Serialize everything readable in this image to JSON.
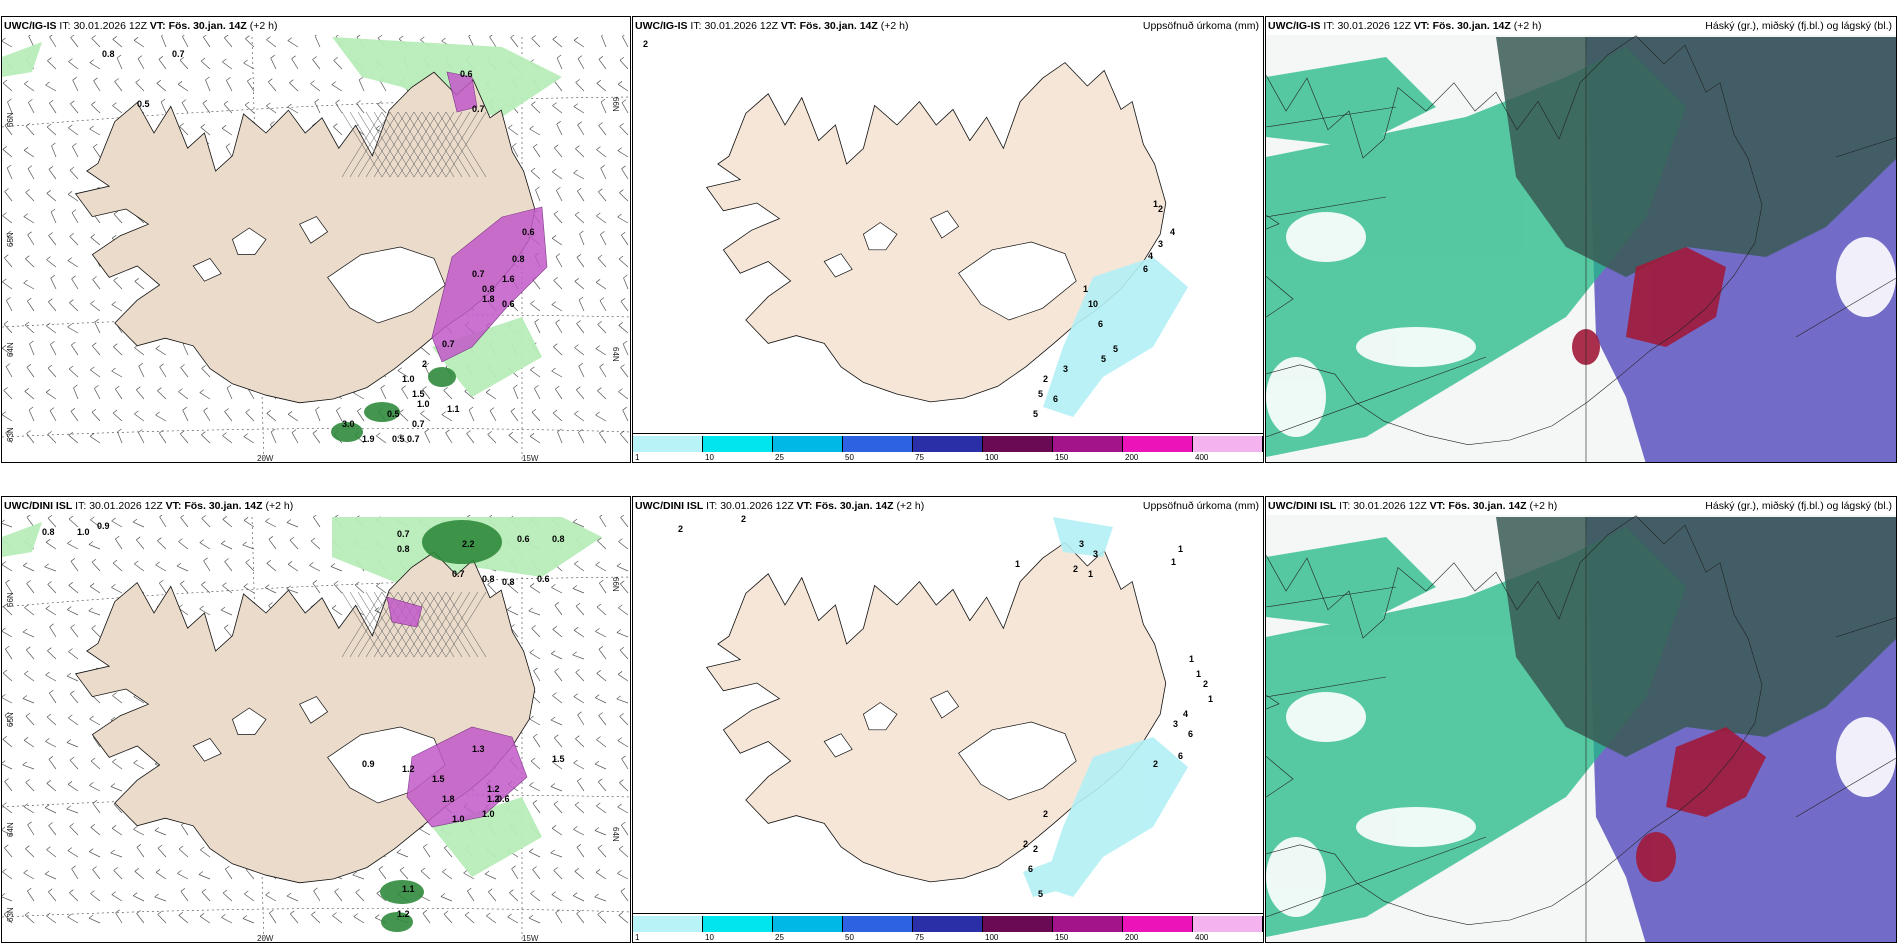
{
  "panels": [
    {
      "id": "ig-wind",
      "model": "UWC/IG-IS",
      "it_label": "IT:",
      "it_value": "30.01.2026 12Z",
      "vt_label": "VT:",
      "vt_value": "Fös. 30.jan. 14Z",
      "lead": "(+2 h)",
      "right_title": "",
      "axis_labels": [
        "66N",
        "65N",
        "64N",
        "63N",
        "66N",
        "64N",
        "20W",
        "15W"
      ],
      "values": [
        "0.8",
        "0.7",
        "0.5",
        "0.6",
        "0.7",
        "0.6",
        "0.8",
        "1.0",
        "2",
        "1.5",
        "1.0",
        "0.7",
        "0.5",
        "0.7",
        "0.8",
        "0.6",
        "1.1",
        "0.7",
        "1.8",
        "1.6",
        "3.0",
        "0.7",
        "1.9",
        "0.5"
      ]
    },
    {
      "id": "ig-precip",
      "model": "UWC/IG-IS",
      "it_label": "IT:",
      "it_value": "30.01.2026 12Z",
      "vt_label": "VT:",
      "vt_value": "Fös. 30.jan. 14Z",
      "lead": "(+2 h)",
      "right_title": "Uppsöfnuð úrkoma (mm)",
      "values": [
        "2",
        "2",
        "1",
        "4",
        "3",
        "4",
        "6",
        "1",
        "10",
        "6",
        "5",
        "5",
        "3",
        "2",
        "5",
        "6",
        "5"
      ],
      "colorbar": [
        "1",
        "10",
        "25",
        "50",
        "75",
        "100",
        "150",
        "200",
        "400"
      ]
    },
    {
      "id": "ig-cloud",
      "model": "UWC/IG-IS",
      "it_label": "IT:",
      "it_value": "30.01.2026 12Z",
      "vt_label": "VT:",
      "vt_value": "Fös. 30.jan. 14Z",
      "lead": "(+2 h)",
      "right_title": "Háský (gr.), miðský (fj.bl.) og lágský (bl.)"
    },
    {
      "id": "dini-wind",
      "model": "UWC/DINI ISL",
      "it_label": "IT:",
      "it_value": "30.01.2026 12Z",
      "vt_label": "VT:",
      "vt_value": "Fös. 30.jan. 14Z",
      "lead": "(+2 h)",
      "right_title": "",
      "axis_labels": [
        "66N",
        "65N",
        "64N",
        "63N",
        "66N",
        "64N",
        "20W",
        "15W"
      ],
      "values": [
        "0.8",
        "1.0",
        "0.9",
        "0.7",
        "0.8",
        "2.2",
        "0.6",
        "0.8",
        "0.7",
        "0.8",
        "0.8",
        "0.6",
        "1.0",
        "0.9",
        "1.2",
        "1.5",
        "1.3",
        "1.8",
        "1.2",
        "0.6",
        "1.0",
        "1.2",
        "1.1",
        "1.2",
        "1.5"
      ]
    },
    {
      "id": "dini-precip",
      "model": "UWC/DINI ISL",
      "it_label": "IT:",
      "it_value": "30.01.2026 12Z",
      "vt_label": "VT:",
      "vt_value": "Fös. 30.jan. 14Z",
      "lead": "(+2 h)",
      "right_title": "Uppsöfnuð úrkoma (mm)",
      "values": [
        "2",
        "2",
        "3",
        "1",
        "1",
        "1",
        "3",
        "2",
        "1",
        "1",
        "1",
        "2",
        "1",
        "4",
        "6",
        "3",
        "6",
        "2",
        "2",
        "2",
        "2",
        "6",
        "5"
      ],
      "colorbar": [
        "1",
        "10",
        "25",
        "50",
        "75",
        "100",
        "150",
        "200",
        "400"
      ]
    },
    {
      "id": "dini-cloud",
      "model": "UWC/DINI ISL",
      "it_label": "IT:",
      "it_value": "30.01.2026 12Z",
      "vt_label": "VT:",
      "vt_value": "Fös. 30.jan. 14Z",
      "lead": "(+2 h)",
      "right_title": "Háský (gr.), miðský (fj.bl.) og lágský (bl.)"
    }
  ],
  "colors": {
    "land": "#f5e6d8",
    "land_wind": "#eadbcb",
    "ice": "#ffffff",
    "precip_light": "#b3f0f5",
    "green_light": "#b8ecb8",
    "green_dark": "#2f8a3c",
    "magenta": "#c25ac9",
    "cloud_high_dark": "#3a5a55",
    "cloud_mid_green": "#21b986",
    "cloud_low_blue": "#5a53c0",
    "cloud_red": "#a11a3a",
    "colorbar": [
      "#b7f3f7",
      "#00e5ee",
      "#00b8e6",
      "#2d63e3",
      "#2a2fa8",
      "#6a0a54",
      "#a3138a",
      "#ec14b9",
      "#f4b3ee"
    ]
  }
}
